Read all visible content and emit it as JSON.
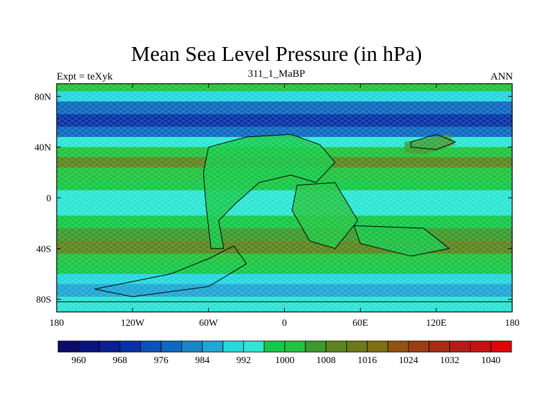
{
  "chart_data": {
    "type": "heatmap",
    "title": "Mean Sea Level Pressure (in hPa)",
    "subtitle_left": "Expt = teXyk",
    "subtitle_center": "311_1_MaBP",
    "subtitle_right": "ANN",
    "x_ticks": [
      "180",
      "120W",
      "60W",
      "0",
      "60E",
      "120E",
      "180"
    ],
    "x_tick_values": [
      -180,
      -120,
      -60,
      0,
      60,
      120,
      180
    ],
    "y_ticks": [
      "80N",
      "40N",
      "0",
      "40S",
      "80S"
    ],
    "y_tick_values": [
      80,
      40,
      0,
      -40,
      -80
    ],
    "xlim": [
      -180,
      180
    ],
    "ylim": [
      -90,
      90
    ],
    "colorbar": {
      "labels": [
        "960",
        "968",
        "976",
        "984",
        "992",
        "1000",
        "1008",
        "1016",
        "1024",
        "1032",
        "1040"
      ],
      "label_values": [
        960,
        968,
        976,
        984,
        992,
        1000,
        1008,
        1016,
        1024,
        1032,
        1040
      ],
      "colors": [
        "#0d0a6e",
        "#0b137e",
        "#0a1f90",
        "#0833a6",
        "#0a52b6",
        "#0e6ac0",
        "#1a86c8",
        "#20a6d4",
        "#25d8dc",
        "#2de6d4",
        "#15c849",
        "#22c33e",
        "#3e9a2d",
        "#5c8520",
        "#6b7a18",
        "#7f6e12",
        "#93530f",
        "#9c3d10",
        "#a82b14",
        "#b51c17",
        "#c71111",
        "#e00606"
      ]
    },
    "zonal_profile": [
      {
        "lat": 90,
        "value": 1000
      },
      {
        "lat": 84,
        "value": 988
      },
      {
        "lat": 76,
        "value": 976
      },
      {
        "lat": 66,
        "value": 966
      },
      {
        "lat": 56,
        "value": 974
      },
      {
        "lat": 48,
        "value": 990
      },
      {
        "lat": 40,
        "value": 1001
      },
      {
        "lat": 32,
        "value": 1006
      },
      {
        "lat": 24,
        "value": 1000
      },
      {
        "lat": 14,
        "value": 994
      },
      {
        "lat": 6,
        "value": 992
      },
      {
        "lat": 0,
        "value": 992
      },
      {
        "lat": -6,
        "value": 993
      },
      {
        "lat": -14,
        "value": 996
      },
      {
        "lat": -24,
        "value": 1002
      },
      {
        "lat": -34,
        "value": 1008
      },
      {
        "lat": -44,
        "value": 1001
      },
      {
        "lat": -52,
        "value": 994
      },
      {
        "lat": -60,
        "value": 988
      },
      {
        "lat": -68,
        "value": 984
      },
      {
        "lat": -78,
        "value": 986
      },
      {
        "lat": -90,
        "value": 990
      }
    ]
  }
}
